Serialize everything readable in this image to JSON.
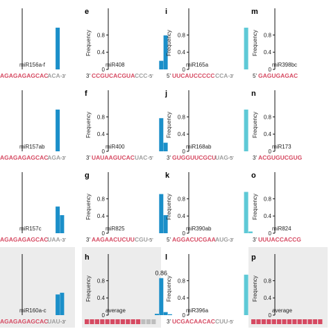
{
  "figure": {
    "axis_label": "Frequency",
    "colors": {
      "bar_blue": "#1b8fc9",
      "bar_cyan": "#5ec9d6",
      "seq_red": "#d64a62",
      "seq_gray": "#9e9e9e",
      "panel_shade": "#ececec",
      "axis": "#111111"
    }
  },
  "chart_data": [
    {
      "type": "bar",
      "panel": "a",
      "letter": "",
      "label": "miR156a-f",
      "prime_left": "",
      "prime_right": "3'",
      "seq_red": "AGAGAGAGCAC",
      "seq_gray": "ACA",
      "bar_color": "blue",
      "values": [
        0,
        0,
        0,
        0,
        0,
        0,
        0,
        0.97,
        0,
        0,
        0,
        0,
        0,
        0
      ],
      "ylim": [
        0,
        1
      ],
      "yticks": [],
      "show_frequency_label": false,
      "shaded": false
    },
    {
      "type": "bar",
      "panel": "b",
      "letter": "",
      "label": "miR157ab",
      "prime_left": "",
      "prime_right": "3'",
      "seq_red": "AGAGAGAGCAC",
      "seq_gray": "AGA",
      "bar_color": "blue",
      "values": [
        0,
        0,
        0,
        0,
        0,
        0,
        0,
        0.97,
        0,
        0,
        0,
        0,
        0,
        0
      ],
      "ylim": [
        0,
        1
      ],
      "yticks": [],
      "show_frequency_label": false,
      "shaded": false
    },
    {
      "type": "bar",
      "panel": "c",
      "letter": "",
      "label": "miR157c",
      "prime_left": "",
      "prime_right": "3'",
      "seq_red": "AGAGAGAGCAC",
      "seq_gray": "UAA",
      "bar_color": "blue",
      "values": [
        0,
        0,
        0,
        0,
        0,
        0,
        0,
        0.62,
        0.42,
        0,
        0,
        0,
        0,
        0
      ],
      "ylim": [
        0,
        1
      ],
      "yticks": [],
      "show_frequency_label": false,
      "shaded": false
    },
    {
      "type": "bar",
      "panel": "d",
      "letter": "",
      "label": "miR160a-c",
      "prime_left": "",
      "prime_right": "3'",
      "seq_red": "AGAGAGAGCAC",
      "seq_gray": "UAU",
      "bar_color": "blue",
      "values": [
        0,
        0,
        0,
        0,
        0,
        0,
        0,
        0.48,
        0.52,
        0,
        0,
        0,
        0,
        0
      ],
      "ylim": [
        0,
        1
      ],
      "yticks": [],
      "show_frequency_label": false,
      "shaded": true
    },
    {
      "type": "bar",
      "panel": "e",
      "letter": "e",
      "label": "miR408",
      "prime_left": "3'",
      "prime_right": "5'",
      "seq_red": "CCGUCACGUA",
      "seq_gray": "CCC",
      "bar_color": "blue",
      "values": [
        0,
        0,
        0,
        0,
        0,
        0,
        0,
        0,
        0,
        0,
        0,
        0.2,
        0.79,
        0
      ],
      "ylim": [
        0,
        1
      ],
      "yticks": [
        0,
        0.4,
        0.8
      ],
      "show_frequency_label": true,
      "shaded": false
    },
    {
      "type": "bar",
      "panel": "f",
      "letter": "f",
      "label": "miR400",
      "prime_left": "3'",
      "prime_right": "5'",
      "seq_red": "UAUAAGUCAC",
      "seq_gray": "UAC",
      "bar_color": "blue",
      "values": [
        0,
        0,
        0,
        0,
        0,
        0,
        0,
        0,
        0,
        0,
        0,
        0.77,
        0.2,
        0
      ],
      "ylim": [
        0,
        1
      ],
      "yticks": [
        0,
        0.4,
        0.8
      ],
      "show_frequency_label": true,
      "shaded": false
    },
    {
      "type": "bar",
      "panel": "g",
      "letter": "g",
      "label": "miR825",
      "prime_left": "3'",
      "prime_right": "5'",
      "seq_red": "AAGAACUCUU",
      "seq_gray": "CGU",
      "bar_color": "blue",
      "values": [
        0,
        0,
        0,
        0,
        0,
        0,
        0,
        0,
        0,
        0,
        0,
        0.91,
        0.42,
        0
      ],
      "ylim": [
        0,
        1
      ],
      "yticks": [
        0,
        0.4,
        0.8
      ],
      "show_frequency_label": true,
      "shaded": false
    },
    {
      "type": "bar",
      "panel": "h",
      "letter": "h",
      "label": "average",
      "prime_left": "",
      "prime_right": "",
      "seq_red": "",
      "seq_gray": "",
      "average_strip": true,
      "bar_color": "blue",
      "values": [
        0,
        0,
        0,
        0,
        0,
        0,
        0,
        0,
        0,
        0,
        0.03,
        0.86,
        0.07,
        0.02
      ],
      "ylim": [
        0,
        1
      ],
      "yticks": [
        0,
        0.4,
        0.8
      ],
      "show_frequency_label": true,
      "shaded": true,
      "peak_label": "0.86"
    },
    {
      "type": "bar",
      "panel": "i",
      "letter": "i",
      "label": "miR165a",
      "prime_left": "5'",
      "prime_right": "3'",
      "seq_red": "UUCAUCCCCC",
      "seq_gray": "CCA",
      "bar_color": "cyan",
      "values": [
        0,
        0,
        0,
        0,
        0,
        0,
        0,
        0,
        0,
        0,
        0,
        0,
        0.97,
        0
      ],
      "ylim": [
        0,
        1
      ],
      "yticks": [
        0,
        0.4,
        0.8
      ],
      "show_frequency_label": true,
      "shaded": false
    },
    {
      "type": "bar",
      "panel": "j",
      "letter": "j",
      "label": "miR168ab",
      "prime_left": "3'",
      "prime_right": "5'",
      "seq_red": "GUGGUUCGCU",
      "seq_gray": "UAG",
      "bar_color": "cyan",
      "values": [
        0,
        0,
        0,
        0,
        0,
        0,
        0,
        0,
        0,
        0,
        0,
        0,
        0.97,
        0
      ],
      "ylim": [
        0,
        1
      ],
      "yticks": [
        0,
        0.4,
        0.8
      ],
      "show_frequency_label": true,
      "shaded": false
    },
    {
      "type": "bar",
      "panel": "k",
      "letter": "k",
      "label": "miR390ab",
      "prime_left": "5'",
      "prime_right": "3'",
      "seq_red": "AGGACUCGAA",
      "seq_gray": "AUG",
      "bar_color": "cyan",
      "values": [
        0,
        0,
        0,
        0,
        0,
        0,
        0,
        0,
        0,
        0,
        0,
        0,
        0.96,
        0.04
      ],
      "ylim": [
        0,
        1
      ],
      "yticks": [
        0,
        0.4,
        0.8
      ],
      "show_frequency_label": true,
      "shaded": false
    },
    {
      "type": "bar",
      "panel": "l",
      "letter": "l",
      "label": "miR396a",
      "prime_left": "3'",
      "prime_right": "5'",
      "seq_red": "UCGACAACAC",
      "seq_gray": "CUU",
      "bar_color": "cyan",
      "values": [
        0,
        0,
        0,
        0,
        0,
        0,
        0,
        0,
        0,
        0,
        0,
        0,
        0.94,
        0
      ],
      "ylim": [
        0,
        1
      ],
      "yticks": [
        0,
        0.4,
        0.8
      ],
      "show_frequency_label": true,
      "shaded": false
    },
    {
      "type": "bar",
      "panel": "m",
      "letter": "m",
      "label": "miR398bc",
      "prime_left": "5'",
      "prime_right": "",
      "seq_red": "GAGUGAGAC",
      "seq_gray": "",
      "bar_color": "cyan",
      "values": [],
      "ylim": [
        0,
        1
      ],
      "yticks": [
        0,
        0.4,
        0.8
      ],
      "show_frequency_label": true,
      "shaded": false
    },
    {
      "type": "bar",
      "panel": "n",
      "letter": "n",
      "label": "miR173",
      "prime_left": "3'",
      "prime_right": "",
      "seq_red": "ACGUGUCGUG",
      "seq_gray": "",
      "bar_color": "cyan",
      "values": [],
      "ylim": [
        0,
        1
      ],
      "yticks": [
        0,
        0.4,
        0.8
      ],
      "show_frequency_label": true,
      "shaded": false
    },
    {
      "type": "bar",
      "panel": "o",
      "letter": "o",
      "label": "miR824",
      "prime_left": "3'",
      "prime_right": "",
      "seq_red": "UUUACCACCG",
      "seq_gray": "",
      "bar_color": "cyan",
      "values": [],
      "ylim": [
        0,
        1
      ],
      "yticks": [
        0,
        0.4,
        0.8
      ],
      "show_frequency_label": true,
      "shaded": false
    },
    {
      "type": "bar",
      "panel": "p",
      "letter": "p",
      "label": "average",
      "prime_left": "",
      "prime_right": "",
      "seq_red": "",
      "seq_gray": "",
      "average_strip": true,
      "bar_color": "cyan",
      "values": [],
      "ylim": [
        0,
        1
      ],
      "yticks": [
        0,
        0.4,
        0.8
      ],
      "show_frequency_label": true,
      "shaded": true
    }
  ]
}
